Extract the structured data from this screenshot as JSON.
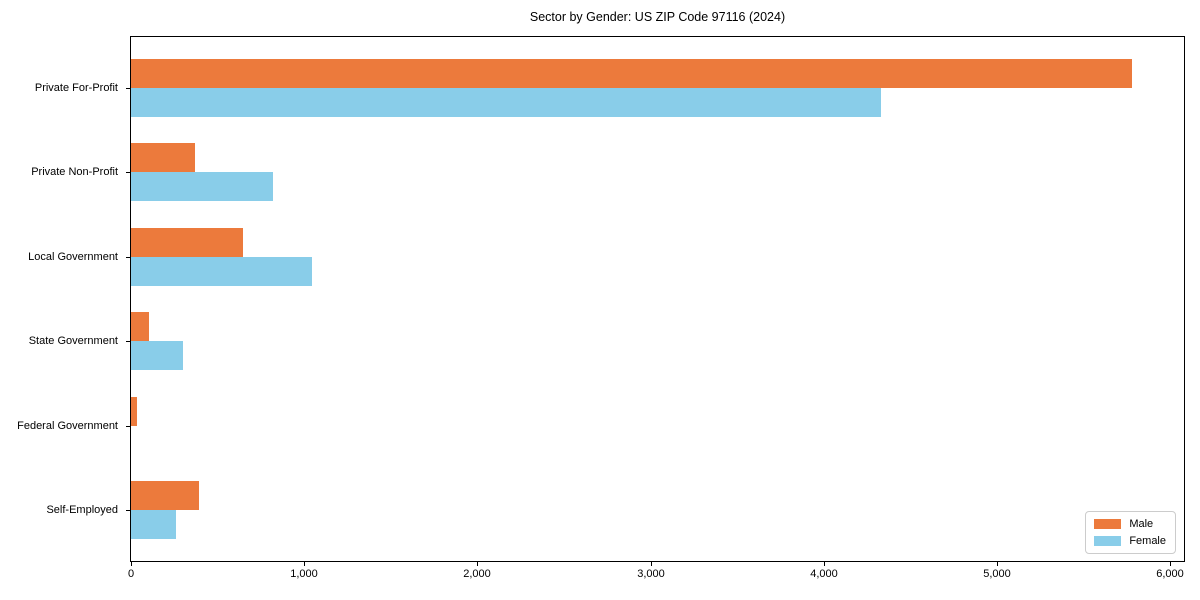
{
  "header": {
    "title": "Sector by Gender: US ZIP Code 97116 (2024)"
  },
  "chart_data": {
    "type": "bar",
    "orientation": "horizontal",
    "title": "Sector by Gender: US ZIP Code 97116 (2024)",
    "xlabel": "",
    "ylabel": "",
    "categories": [
      "Private For-Profit",
      "Private Non-Profit",
      "Local Government",
      "State Government",
      "Federal Government",
      "Self-Employed"
    ],
    "series": [
      {
        "name": "Male",
        "color": "#ec7a3c",
        "values": [
          5780,
          370,
          645,
          105,
          35,
          390
        ]
      },
      {
        "name": "Female",
        "color": "#89cde9",
        "values": [
          4330,
          820,
          1045,
          300,
          0,
          260
        ]
      }
    ],
    "xlim": [
      0,
      6080
    ],
    "xticks": [
      0,
      1000,
      2000,
      3000,
      4000,
      5000,
      6000
    ],
    "xtick_labels": [
      "0",
      "1,000",
      "2,000",
      "3,000",
      "4,000",
      "5,000",
      "6,000"
    ],
    "grid": false,
    "legend_position": "lower right",
    "background_color": "#ffffff",
    "spine_color": "#000000"
  },
  "legend": {
    "items": [
      {
        "label": "Male",
        "color": "#ec7a3c"
      },
      {
        "label": "Female",
        "color": "#89cde9"
      }
    ]
  }
}
